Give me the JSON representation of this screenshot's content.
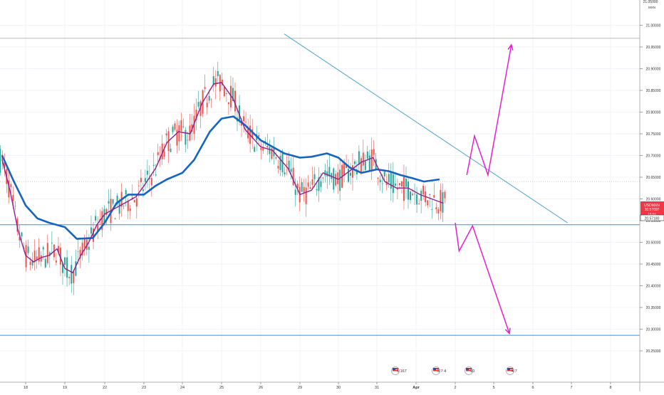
{
  "chart_data": {
    "type": "line",
    "symbol_label": "USDMXN",
    "price_axis": {
      "ticks": [
        20.25,
        20.3,
        20.35,
        20.4,
        20.45,
        20.5,
        20.55,
        20.6,
        20.65,
        20.7,
        20.75,
        20.8,
        20.85,
        20.9,
        20.95,
        21.0
      ],
      "tick_labels": [
        "20.25000",
        "20.30000",
        "20.35000",
        "20.40000",
        "20.45000",
        "20.50000",
        "20.55000",
        "20.60000",
        "20.65000",
        "20.70000",
        "20.75000",
        "20.80000",
        "20.85000",
        "20.90000",
        "20.95000",
        "21.00000"
      ],
      "top_label_partial": "21.05000",
      "currency_label": "MXN",
      "ylim": [
        20.215,
        21.05
      ]
    },
    "time_axis": {
      "labels": [
        "18",
        "19",
        "22",
        "23",
        "24",
        "25",
        "26",
        "29",
        "30",
        "31",
        "Apr",
        "2",
        "5",
        "6",
        "7",
        "8"
      ],
      "label_bold": [
        false,
        false,
        false,
        false,
        false,
        false,
        false,
        false,
        false,
        false,
        true,
        false,
        false,
        false,
        false,
        false
      ]
    },
    "current_price": {
      "label": "USDMXN",
      "value": "20.57697",
      "countdown": "15:04",
      "color": "#f23645"
    },
    "bid_price": {
      "value": "20.57180"
    },
    "horizontal_levels": [
      {
        "value": 20.54058,
        "label": "20.54058",
        "color": "#2196f3"
      },
      {
        "value": 20.28585,
        "label": "20.28585",
        "color": "#2196f3"
      },
      {
        "value": 20.97,
        "color": "#b0b0b0",
        "style": "solid-thin"
      },
      {
        "value": 20.64,
        "color": "#b0b0b0",
        "style": "dotted"
      }
    ],
    "trendline": {
      "from": {
        "time": 24.6,
        "price": 20.98
      },
      "to": {
        "time": 31.9,
        "price": 20.545
      },
      "color": "#4fa3d1"
    },
    "projections": [
      {
        "name": "bullish",
        "color": "#e91ed2",
        "points": [
          [
            29.3,
            20.655
          ],
          [
            29.5,
            20.745
          ],
          [
            29.85,
            20.655
          ],
          [
            30.45,
            20.955
          ]
        ]
      },
      {
        "name": "bearish",
        "color": "#e91ed2",
        "points": [
          [
            29.0,
            20.545
          ],
          [
            29.1,
            20.48
          ],
          [
            29.45,
            20.538
          ],
          [
            30.4,
            20.29
          ]
        ]
      }
    ],
    "series": [
      {
        "name": "",
        "color": "#1565c0",
        "x": [
          17.4,
          17.7,
          18.0,
          18.3,
          18.6,
          19.0,
          19.3,
          19.7,
          20.0,
          20.3,
          20.6,
          21.0,
          21.3,
          21.6,
          22.0,
          22.3,
          22.7,
          23.0,
          23.3,
          23.6,
          24.0,
          24.3,
          24.6,
          25.0,
          25.3,
          25.7,
          26.0,
          26.3,
          26.6,
          27.0,
          27.3,
          27.6,
          27.9,
          28.2,
          28.6
        ],
        "y": [
          20.7,
          20.64,
          20.585,
          20.555,
          20.545,
          20.535,
          20.508,
          20.51,
          20.545,
          20.59,
          20.61,
          20.61,
          20.63,
          20.645,
          20.66,
          20.69,
          20.755,
          20.785,
          20.79,
          20.77,
          20.735,
          20.72,
          20.705,
          20.695,
          20.697,
          20.705,
          20.695,
          20.672,
          20.66,
          20.668,
          20.664,
          20.655,
          20.648,
          20.64,
          20.645
        ]
      },
      {
        "name": "",
        "color": "#8e1f8e",
        "x": [
          17.4,
          17.6,
          17.8,
          18.0,
          18.2,
          18.4,
          18.6,
          18.8,
          19.0,
          19.2,
          19.4,
          19.6,
          19.8,
          20.0,
          20.2,
          20.5,
          20.8,
          21.0,
          21.3,
          21.6,
          21.9,
          22.2,
          22.5,
          22.8,
          23.0,
          23.3,
          23.6,
          24.0,
          24.3,
          24.7,
          25.0,
          25.3,
          25.6,
          26.0,
          26.3,
          26.6,
          26.9,
          27.2,
          27.5,
          27.8,
          28.1,
          28.4,
          28.7
        ],
        "y": [
          20.69,
          20.62,
          20.53,
          20.47,
          20.455,
          20.465,
          20.47,
          20.485,
          20.44,
          20.43,
          20.47,
          20.5,
          20.54,
          20.565,
          20.575,
          20.59,
          20.605,
          20.63,
          20.67,
          20.73,
          20.755,
          20.75,
          20.82,
          20.865,
          20.868,
          20.83,
          20.76,
          20.72,
          20.712,
          20.67,
          20.61,
          20.62,
          20.66,
          20.645,
          20.665,
          20.685,
          20.695,
          20.64,
          20.625,
          20.625,
          20.61,
          20.6,
          20.59
        ]
      }
    ],
    "ma_fast_color": "#f5a623",
    "candles": {
      "up_color": "#26a69a",
      "down_color": "#ef5350"
    },
    "event_markers": [
      {
        "label": "5 167",
        "flag": "US"
      },
      {
        "label": "3 7 4",
        "flag": "US"
      },
      {
        "label": "10",
        "flag": "US"
      },
      {
        "label": "4 7",
        "flag": "US"
      }
    ]
  }
}
